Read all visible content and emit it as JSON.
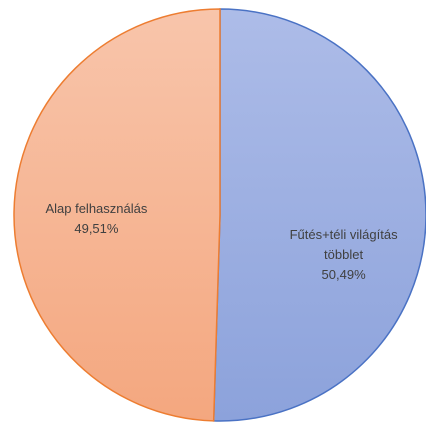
{
  "chart_data": {
    "type": "pie",
    "categories": [
      "Fűtés+téli világítás többlet",
      "Alap felhasználás"
    ],
    "values": [
      50.49,
      49.51
    ],
    "value_labels": [
      "50,49%",
      "49,51%"
    ],
    "colors": [
      "#9aaee2",
      "#f6b595"
    ]
  }
}
